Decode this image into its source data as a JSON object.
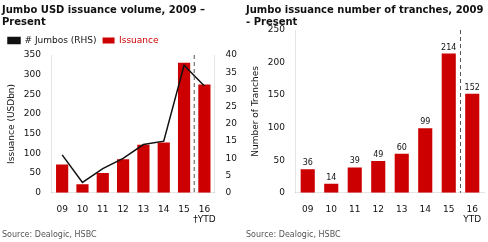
{
  "chart_data": [
    {
      "type": "bar",
      "title": "Jumbo USD issuance volume, 2009 –\nPresent",
      "categories": [
        "09",
        "10",
        "11",
        "12",
        "13",
        "14",
        "15",
        "16"
      ],
      "series": [
        {
          "name": "Issuance",
          "type": "bar",
          "color": "#cc0000",
          "values": [
            72,
            22,
            50,
            85,
            122,
            128,
            330,
            275
          ]
        },
        {
          "name": "# Jumbos (RHS)",
          "type": "line",
          "color": "#111111",
          "axis": "y2",
          "values": [
            11,
            3,
            7,
            10,
            14,
            15,
            37,
            31
          ]
        }
      ],
      "ylabel": "Issuance (USDbn)",
      "ylim": [
        0,
        350
      ],
      "yticks": [
        0,
        50,
        100,
        150,
        200,
        250,
        300,
        350
      ],
      "y2lim": [
        0,
        40
      ],
      "y2ticks": [
        0,
        5,
        10,
        15,
        20,
        25,
        30,
        35,
        40
      ],
      "annotations": [
        {
          "text": "†YTD",
          "x": "16"
        }
      ],
      "source": "Source: Dealogic, HSBC",
      "legend": "upper left",
      "grid": false
    },
    {
      "type": "bar",
      "title": "Jumbo issuance number of tranches, 2009\n- Present",
      "categories": [
        "09",
        "10",
        "11",
        "12",
        "13",
        "14",
        "15",
        "16"
      ],
      "values": [
        36,
        14,
        39,
        49,
        60,
        99,
        214,
        152
      ],
      "color": "#cc0000",
      "ylabel": "Number of Tranches",
      "ylim": [
        0,
        250
      ],
      "yticks": [
        0,
        50,
        100,
        150,
        200,
        250
      ],
      "data_labels": true,
      "annotations": [
        {
          "text": "YTD",
          "x": "16"
        }
      ],
      "source": "Source: Dealogic, HSBC",
      "grid": false
    }
  ]
}
